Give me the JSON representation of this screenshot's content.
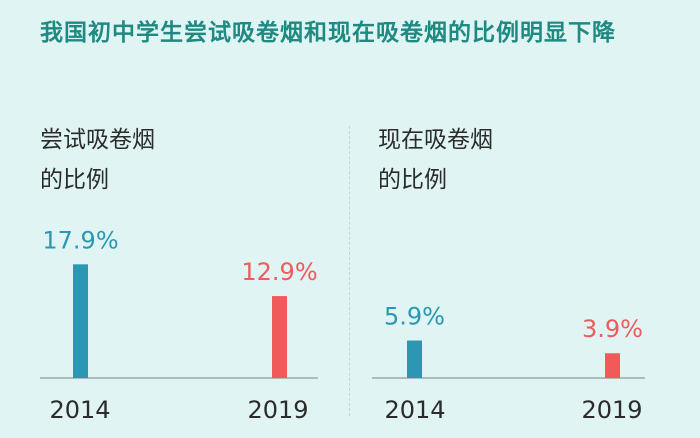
{
  "title": "我国初中学生尝试吸卷烟和现在吸卷烟的比例明显下降",
  "colors": {
    "y2014": "#2b97b3",
    "y2019": "#f05a5a",
    "title": "#1f8a82"
  },
  "chart_data": [
    {
      "type": "bar",
      "label_lines": [
        "尝试吸卷烟",
        "的比例"
      ],
      "categories": [
        "2014",
        "2019"
      ],
      "values": [
        17.9,
        12.9
      ],
      "value_labels": [
        "17.9%",
        "12.9%"
      ],
      "ylim": [
        0,
        20
      ]
    },
    {
      "type": "bar",
      "label_lines": [
        "现在吸卷烟",
        "的比例"
      ],
      "categories": [
        "2014",
        "2019"
      ],
      "values": [
        5.9,
        3.9
      ],
      "value_labels": [
        "5.9%",
        "3.9%"
      ],
      "ylim": [
        0,
        20
      ]
    }
  ]
}
